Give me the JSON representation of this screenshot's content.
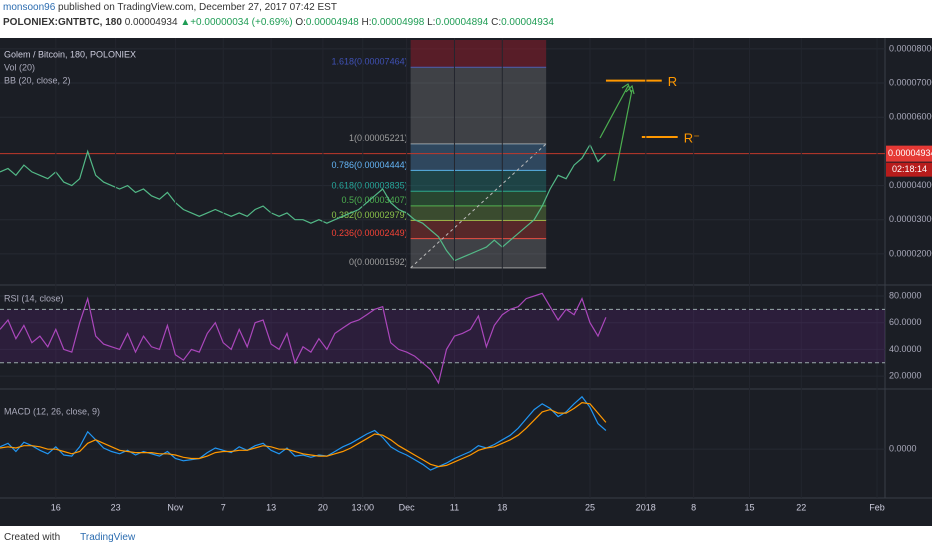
{
  "header": {
    "user": "monsoon96",
    "published": " published on TradingView.com, December 27, 2017 07:42 EST",
    "symbol": "POLONIEX:GNTBTC, 180",
    "last": "0.00004934",
    "arrow": "▲",
    "change": "+0.00000034 (+0.69%)",
    "o_label": "O:",
    "o": "0.00004948",
    "h_label": "H:",
    "h": "0.00004998",
    "l_label": "L:",
    "l": "0.00004894",
    "c_label": "C:",
    "c": "0.00004934"
  },
  "footer": {
    "created": "Created with",
    "brand": "TradingView"
  },
  "chart_data": [
    {
      "type": "line",
      "title": "Golem / Bitcoin, 180, POLONIEX",
      "indicators": [
        "Vol (20)",
        "BB (20, close, 2)"
      ],
      "color": "#53b987",
      "xlim": [
        0,
        222
      ],
      "xticks": [
        {
          "value": 14,
          "label": "16"
        },
        {
          "value": 29,
          "label": "23"
        },
        {
          "value": 44,
          "label": "Nov"
        },
        {
          "value": 56,
          "label": "7"
        },
        {
          "value": 68,
          "label": "13"
        },
        {
          "value": 81,
          "label": "20"
        },
        {
          "value": 91,
          "label": "13:00"
        },
        {
          "value": 102,
          "label": "Dec"
        },
        {
          "value": 114,
          "label": "11"
        },
        {
          "value": 126,
          "label": "18"
        },
        {
          "value": 148,
          "label": "25"
        },
        {
          "value": 162,
          "label": "2018"
        },
        {
          "value": 174,
          "label": "8"
        },
        {
          "value": 188,
          "label": "15"
        },
        {
          "value": 201,
          "label": "22"
        },
        {
          "value": 220,
          "label": "Feb"
        }
      ],
      "ylim": [
        1.09e-05,
        8.26e-05
      ],
      "yticks": [
        {
          "value": 8e-05,
          "label": "0.00008000"
        },
        {
          "value": 7e-05,
          "label": "0.00007000"
        },
        {
          "value": 6e-05,
          "label": "0.00006000"
        },
        {
          "value": 4e-05,
          "label": "0.00004000"
        },
        {
          "value": 3e-05,
          "label": "0.00003000"
        },
        {
          "value": 2e-05,
          "label": "0.00002000"
        }
      ],
      "last_price": {
        "value": 4.934e-05,
        "label": "0.00004934",
        "countdown": "02:18:14"
      },
      "x": [
        0,
        2,
        4,
        6,
        8,
        10,
        12,
        14,
        16,
        18,
        20,
        22,
        24,
        26,
        28,
        30,
        32,
        34,
        36,
        38,
        40,
        42,
        44,
        46,
        48,
        50,
        52,
        54,
        56,
        58,
        60,
        62,
        64,
        66,
        68,
        70,
        72,
        74,
        76,
        78,
        80,
        82,
        84,
        86,
        88,
        90,
        92,
        94,
        96,
        98,
        100,
        102,
        104,
        106,
        108,
        110,
        112,
        114,
        116,
        118,
        120,
        122,
        124,
        126,
        128,
        130,
        132,
        134,
        136,
        138,
        140,
        142,
        144,
        146,
        148,
        150,
        152
      ],
      "values": [
        4.4e-05,
        4.5e-05,
        4.3e-05,
        4.6e-05,
        4.4e-05,
        4.3e-05,
        4.2e-05,
        4.4e-05,
        4.1e-05,
        4e-05,
        4.2e-05,
        5e-05,
        4.3e-05,
        4.1e-05,
        4e-05,
        3.9e-05,
        4e-05,
        3.8e-05,
        3.9e-05,
        3.7e-05,
        3.6e-05,
        3.8e-05,
        3.5e-05,
        3.3e-05,
        3.2e-05,
        3.1e-05,
        3.2e-05,
        3.3e-05,
        3.2e-05,
        3.1e-05,
        3.2e-05,
        3.1e-05,
        3.3e-05,
        3.4e-05,
        3.2e-05,
        3.1e-05,
        3.2e-05,
        3e-05,
        3e-05,
        2.9e-05,
        3e-05,
        2.9e-05,
        3e-05,
        3.1e-05,
        3.2e-05,
        3.3e-05,
        3.5e-05,
        3.7e-05,
        3.9e-05,
        3.5e-05,
        3.3e-05,
        3.2e-05,
        3e-05,
        2.9e-05,
        2.7e-05,
        2.5e-05,
        2.1e-05,
        1.8e-05,
        1.9e-05,
        2e-05,
        2.1e-05,
        2.2e-05,
        2.4e-05,
        2.2e-05,
        2.4e-05,
        2.6e-05,
        2.8e-05,
        3e-05,
        3.4e-05,
        3.9e-05,
        4.3e-05,
        4.2e-05,
        4.6e-05,
        4.8e-05,
        5.2e-05,
        4.7e-05,
        4.93e-05
      ],
      "fib": {
        "x": [
          103,
          137
        ],
        "levels": [
          {
            "value": 7.464e-05,
            "label": "1.618(0.00007464)",
            "color": "#3f51b5"
          },
          {
            "value": 5.221e-05,
            "label": "1(0.00005221)",
            "color": "#9e9e9e"
          },
          {
            "value": 4.444e-05,
            "label": "0.786(0.00004444)",
            "color": "#64b5f6"
          },
          {
            "value": 3.835e-05,
            "label": "0.618(0.00003835)",
            "color": "#26a69a"
          },
          {
            "value": 3.407e-05,
            "label": "0.5(0.00003407)",
            "color": "#4caf50"
          },
          {
            "value": 2.979e-05,
            "label": "0.382(0.00002979)",
            "color": "#8bc34a"
          },
          {
            "value": 2.449e-05,
            "label": "0.236(0.00002449)",
            "color": "#f44336"
          },
          {
            "value": 1.592e-05,
            "label": "0(0.00001592)",
            "color": "#9e9e9e"
          }
        ]
      },
      "annotations": [
        {
          "text": "R",
          "value": 7.07e-05,
          "x": [
            152,
            166
          ],
          "color": "#ff9800"
        },
        {
          "text": "R⁻",
          "value": 5.42e-05,
          "x": [
            161,
            170
          ],
          "color": "#ff9800"
        }
      ]
    },
    {
      "type": "line",
      "title": "RSI (14, close)",
      "color": "#ab47bc",
      "ylim": [
        10.4,
        86.7
      ],
      "yticks": [
        {
          "value": 80,
          "label": "80.0000"
        },
        {
          "value": 60,
          "label": "60.0000"
        },
        {
          "value": 40,
          "label": "40.0000"
        },
        {
          "value": 20,
          "label": "20.0000"
        }
      ],
      "bands": [
        70,
        30
      ],
      "x": [
        0,
        2,
        4,
        6,
        8,
        10,
        12,
        14,
        16,
        18,
        20,
        22,
        24,
        26,
        28,
        30,
        32,
        34,
        36,
        38,
        40,
        42,
        44,
        46,
        48,
        50,
        52,
        54,
        56,
        58,
        60,
        62,
        64,
        66,
        68,
        70,
        72,
        74,
        76,
        78,
        80,
        82,
        84,
        86,
        88,
        90,
        92,
        94,
        96,
        98,
        100,
        102,
        104,
        106,
        108,
        110,
        112,
        114,
        116,
        118,
        120,
        122,
        124,
        126,
        128,
        130,
        132,
        134,
        136,
        138,
        140,
        142,
        144,
        146,
        148,
        150,
        152
      ],
      "values": [
        55,
        62,
        48,
        58,
        45,
        50,
        42,
        55,
        40,
        38,
        60,
        78,
        50,
        44,
        42,
        40,
        52,
        38,
        50,
        42,
        40,
        58,
        36,
        32,
        40,
        38,
        52,
        60,
        45,
        40,
        55,
        42,
        60,
        62,
        44,
        40,
        52,
        30,
        42,
        38,
        48,
        40,
        52,
        56,
        60,
        62,
        66,
        70,
        72,
        45,
        40,
        38,
        35,
        30,
        25,
        15,
        40,
        50,
        52,
        55,
        65,
        42,
        58,
        66,
        70,
        72,
        78,
        80,
        82,
        72,
        62,
        70,
        66,
        78,
        60,
        50,
        64
      ]
    },
    {
      "type": "line",
      "title": "MACD (12, 26, close, 9)",
      "ylim": [
        -4.2e-06,
        5e-06
      ],
      "yticks": [
        {
          "value": 0,
          "label": "0.0000"
        }
      ],
      "x": [
        0,
        2,
        4,
        6,
        8,
        10,
        12,
        14,
        16,
        18,
        20,
        22,
        24,
        26,
        28,
        30,
        32,
        34,
        36,
        38,
        40,
        42,
        44,
        46,
        48,
        50,
        52,
        54,
        56,
        58,
        60,
        62,
        64,
        66,
        68,
        70,
        72,
        74,
        76,
        78,
        80,
        82,
        84,
        86,
        88,
        90,
        92,
        94,
        96,
        98,
        100,
        102,
        104,
        106,
        108,
        110,
        112,
        114,
        116,
        118,
        120,
        122,
        124,
        126,
        128,
        130,
        132,
        134,
        136,
        138,
        140,
        142,
        144,
        146,
        148,
        150,
        152
      ],
      "series": [
        {
          "color": "#2196f3",
          "values": [
            2e-07,
            5e-07,
            -2e-07,
            6e-07,
            3e-07,
            -1e-07,
            -4e-07,
            2e-07,
            -5e-07,
            -6e-07,
            2e-07,
            1.5e-06,
            8e-07,
            1e-07,
            -2e-07,
            -4e-07,
            -1e-07,
            -5e-07,
            -2e-07,
            -4e-07,
            -6e-07,
            -2e-07,
            -8e-07,
            -1e-06,
            -9e-07,
            -8e-07,
            -3e-07,
            1e-07,
            -1e-07,
            -3e-07,
            2e-07,
            -1e-07,
            3e-07,
            5e-07,
            -1e-07,
            -4e-07,
            1e-07,
            -6e-07,
            -5e-07,
            -7e-07,
            -5e-07,
            -6e-07,
            -2e-07,
            2e-07,
            5e-07,
            9e-07,
            1.3e-06,
            1.6e-06,
            1e-06,
            2e-07,
            -2e-07,
            -5e-07,
            -9e-07,
            -1.3e-06,
            -1.8e-06,
            -1.5e-06,
            -1.2e-06,
            -8e-07,
            -5e-07,
            -2e-07,
            3e-07,
            1e-07,
            4e-07,
            8e-07,
            1.2e-06,
            1.8e-06,
            2.6e-06,
            3.4e-06,
            3.9e-06,
            3.5e-06,
            2.8e-06,
            3.2e-06,
            3.9e-06,
            4.5e-06,
            3.6e-06,
            2.2e-06,
            1.6e-06
          ]
        },
        {
          "color": "#ff9800",
          "values": [
            1e-07,
            2e-07,
            1e-07,
            3e-07,
            3e-07,
            2e-07,
            0.0,
            0.0,
            -2e-07,
            -4e-07,
            -2e-07,
            5e-07,
            8e-07,
            5e-07,
            2e-07,
            -1e-07,
            -2e-07,
            -3e-07,
            -3e-07,
            -3e-07,
            -4e-07,
            -4e-07,
            -5e-07,
            -7e-07,
            -8e-07,
            -8e-07,
            -6e-07,
            -3e-07,
            -2e-07,
            -2e-07,
            -1e-07,
            -1e-07,
            1e-07,
            3e-07,
            2e-07,
            0.0,
            0.0,
            -2e-07,
            -4e-07,
            -5e-07,
            -6e-07,
            -6e-07,
            -4e-07,
            -2e-07,
            1e-07,
            5e-07,
            9e-07,
            1.3e-06,
            1.2e-06,
            8e-07,
            3e-07,
            -1e-07,
            -5e-07,
            -9e-07,
            -1.3e-06,
            -1.5e-06,
            -1.4e-06,
            -1.1e-06,
            -8e-07,
            -5e-07,
            -1e-07,
            1e-07,
            2e-07,
            5e-07,
            8e-07,
            1.2e-06,
            1.8e-06,
            2.5e-06,
            3.2e-06,
            3.4e-06,
            3.1e-06,
            3.1e-06,
            3.5e-06,
            4e-06,
            3.9e-06,
            3.1e-06,
            2.3e-06
          ]
        }
      ]
    }
  ]
}
